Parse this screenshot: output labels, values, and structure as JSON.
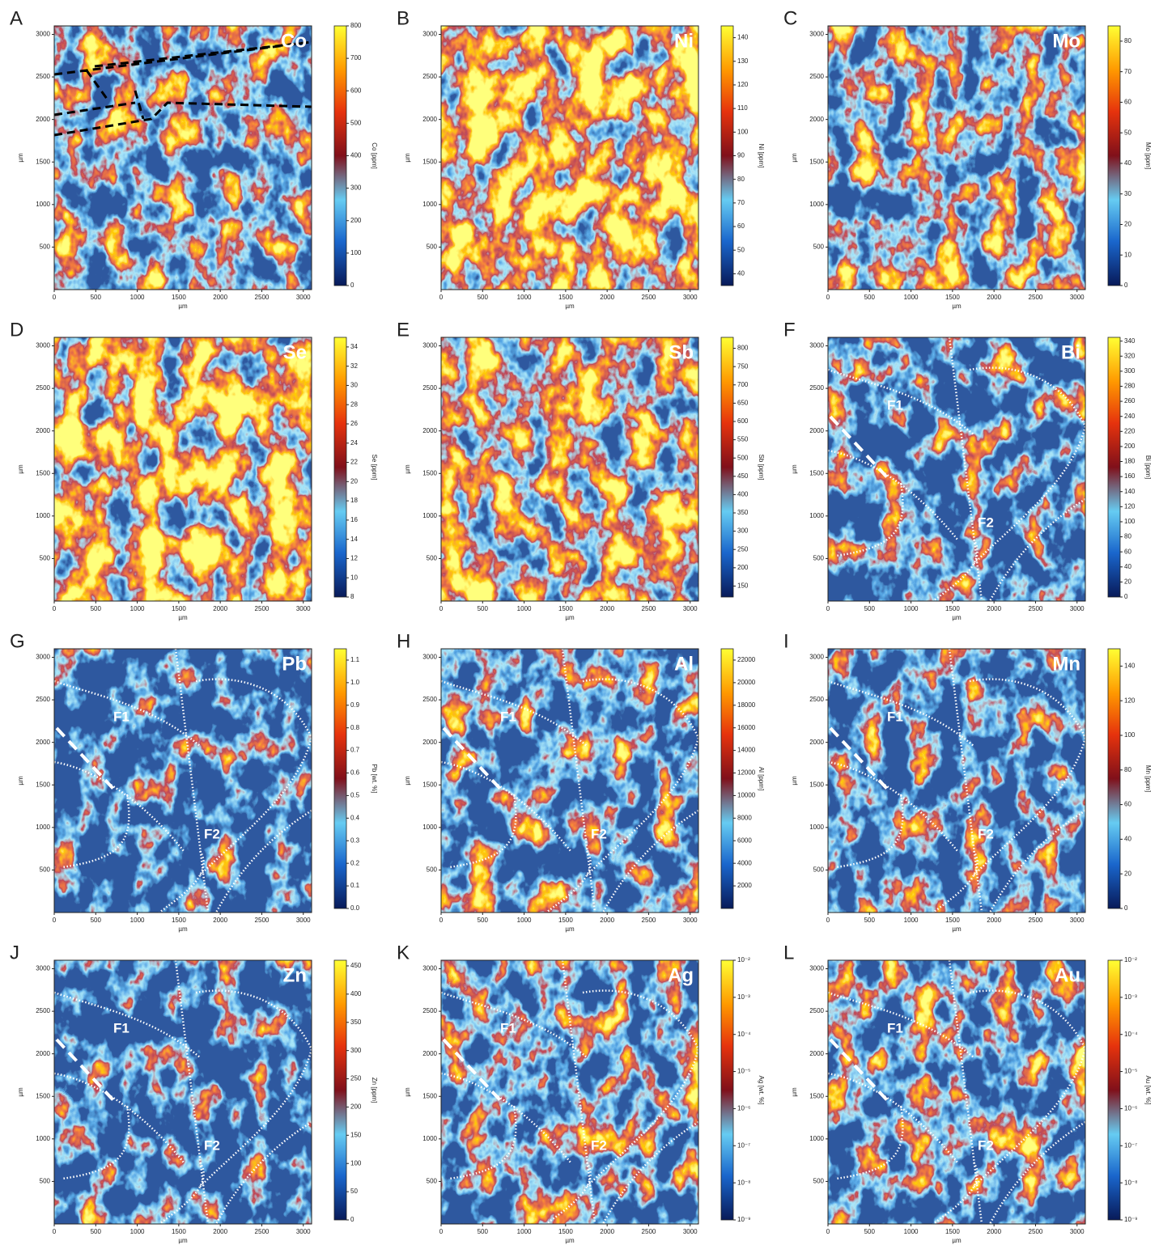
{
  "chart_data": [
    {
      "type": "heatmap",
      "panel_label": "A",
      "title": "Co",
      "xlabel": "µm",
      "ylabel": "µm",
      "xlim": [
        0,
        3100
      ],
      "ylim": [
        0,
        3100
      ],
      "xticks": [
        0,
        500,
        1000,
        1500,
        2000,
        2500,
        3000
      ],
      "yticks": [
        500,
        1000,
        1500,
        2000,
        2500,
        3000
      ],
      "colorbar": {
        "label": "Co [ppm]",
        "lim": [
          0,
          800
        ],
        "ticks": [
          0,
          100,
          200,
          300,
          400,
          500,
          600,
          700,
          800
        ],
        "log": false
      }
    },
    {
      "type": "heatmap",
      "panel_label": "B",
      "title": "Ni",
      "xlabel": "µm",
      "ylabel": "µm",
      "xlim": [
        0,
        3100
      ],
      "ylim": [
        0,
        3100
      ],
      "xticks": [
        0,
        500,
        1000,
        1500,
        2000,
        2500,
        3000
      ],
      "yticks": [
        500,
        1000,
        1500,
        2000,
        2500,
        3000
      ],
      "colorbar": {
        "label": "Ni [ppm]",
        "lim": [
          35,
          145
        ],
        "ticks": [
          40,
          50,
          60,
          70,
          80,
          90,
          100,
          110,
          120,
          130,
          140
        ],
        "log": false
      }
    },
    {
      "type": "heatmap",
      "panel_label": "C",
      "title": "Mo",
      "xlabel": "µm",
      "ylabel": "µm",
      "xlim": [
        0,
        3100
      ],
      "ylim": [
        0,
        3100
      ],
      "xticks": [
        0,
        500,
        1000,
        1500,
        2000,
        2500,
        3000
      ],
      "yticks": [
        500,
        1000,
        1500,
        2000,
        2500,
        3000
      ],
      "colorbar": {
        "label": "Mo [ppm]",
        "lim": [
          0,
          85
        ],
        "ticks": [
          0,
          10,
          20,
          30,
          40,
          50,
          60,
          70,
          80
        ],
        "log": false
      }
    },
    {
      "type": "heatmap",
      "panel_label": "D",
      "title": "Se",
      "xlabel": "µm",
      "ylabel": "µm",
      "xlim": [
        0,
        3100
      ],
      "ylim": [
        0,
        3100
      ],
      "xticks": [
        0,
        500,
        1000,
        1500,
        2000,
        2500,
        3000
      ],
      "yticks": [
        500,
        1000,
        1500,
        2000,
        2500,
        3000
      ],
      "colorbar": {
        "label": "Se [ppm]",
        "lim": [
          8,
          35
        ],
        "ticks": [
          8,
          10,
          12,
          14,
          16,
          18,
          20,
          22,
          24,
          26,
          28,
          30,
          32,
          34
        ],
        "log": false
      }
    },
    {
      "type": "heatmap",
      "panel_label": "E",
      "title": "Sb",
      "xlabel": "µm",
      "ylabel": "µm",
      "xlim": [
        0,
        3100
      ],
      "ylim": [
        0,
        3100
      ],
      "xticks": [
        0,
        500,
        1000,
        1500,
        2000,
        2500,
        3000
      ],
      "yticks": [
        500,
        1000,
        1500,
        2000,
        2500,
        3000
      ],
      "colorbar": {
        "label": "Sb [ppm]",
        "lim": [
          120,
          830
        ],
        "ticks": [
          150,
          200,
          250,
          300,
          350,
          400,
          450,
          500,
          550,
          600,
          650,
          700,
          750,
          800
        ],
        "log": false
      }
    },
    {
      "type": "heatmap",
      "panel_label": "F",
      "title": "Bi",
      "xlabel": "µm",
      "ylabel": "µm",
      "xlim": [
        0,
        3100
      ],
      "ylim": [
        0,
        3100
      ],
      "xticks": [
        0,
        500,
        1000,
        1500,
        2000,
        2500,
        3000
      ],
      "yticks": [
        500,
        1000,
        1500,
        2000,
        2500,
        3000
      ],
      "annotations": [
        "F1",
        "F2"
      ],
      "colorbar": {
        "label": "Bi [ppm]",
        "lim": [
          0,
          345
        ],
        "ticks": [
          0,
          20,
          40,
          60,
          80,
          100,
          120,
          140,
          160,
          180,
          200,
          220,
          240,
          260,
          280,
          300,
          320,
          340
        ],
        "log": false
      }
    },
    {
      "type": "heatmap",
      "panel_label": "G",
      "title": "Pb",
      "xlabel": "µm",
      "ylabel": "µm",
      "xlim": [
        0,
        3100
      ],
      "ylim": [
        0,
        3100
      ],
      "xticks": [
        0,
        500,
        1000,
        1500,
        2000,
        2500,
        3000
      ],
      "yticks": [
        500,
        1000,
        1500,
        2000,
        2500,
        3000
      ],
      "annotations": [
        "F1",
        "F2"
      ],
      "colorbar": {
        "label": "Pb [wt. %]",
        "lim": [
          0,
          1.15
        ],
        "ticks": [
          {
            "value": 0,
            "label": "0.0"
          },
          0.1,
          0.2,
          0.3,
          0.4,
          0.5,
          0.6,
          0.7,
          0.8,
          0.9,
          {
            "value": 1,
            "label": "1.0"
          },
          1.1
        ],
        "log": false
      }
    },
    {
      "type": "heatmap",
      "panel_label": "H",
      "title": "Al",
      "xlabel": "µm",
      "ylabel": "µm",
      "xlim": [
        0,
        3100
      ],
      "ylim": [
        0,
        3100
      ],
      "xticks": [
        0,
        500,
        1000,
        1500,
        2000,
        2500,
        3000
      ],
      "yticks": [
        500,
        1000,
        1500,
        2000,
        2500,
        3000
      ],
      "annotations": [
        "F1",
        "F2"
      ],
      "colorbar": {
        "label": "Al [ppm]",
        "lim": [
          0,
          23000
        ],
        "ticks": [
          2000,
          4000,
          6000,
          8000,
          10000,
          12000,
          14000,
          16000,
          18000,
          20000,
          22000
        ],
        "log": false
      }
    },
    {
      "type": "heatmap",
      "panel_label": "I",
      "title": "Mn",
      "xlabel": "µm",
      "ylabel": "µm",
      "xlim": [
        0,
        3100
      ],
      "ylim": [
        0,
        3100
      ],
      "xticks": [
        0,
        500,
        1000,
        1500,
        2000,
        2500,
        3000
      ],
      "yticks": [
        500,
        1000,
        1500,
        2000,
        2500,
        3000
      ],
      "annotations": [
        "F1",
        "F2"
      ],
      "colorbar": {
        "label": "Mn [ppm]",
        "lim": [
          0,
          150
        ],
        "ticks": [
          0,
          20,
          40,
          60,
          80,
          100,
          120,
          140
        ],
        "log": false
      }
    },
    {
      "type": "heatmap",
      "panel_label": "J",
      "title": "Zn",
      "xlabel": "µm",
      "ylabel": "µm",
      "xlim": [
        0,
        3100
      ],
      "ylim": [
        0,
        3100
      ],
      "xticks": [
        0,
        500,
        1000,
        1500,
        2000,
        2500,
        3000
      ],
      "yticks": [
        500,
        1000,
        1500,
        2000,
        2500,
        3000
      ],
      "annotations": [
        "F1",
        "F2"
      ],
      "colorbar": {
        "label": "Zn [ppm]",
        "lim": [
          0,
          460
        ],
        "ticks": [
          0,
          50,
          100,
          150,
          200,
          250,
          300,
          350,
          400,
          450
        ],
        "log": false
      }
    },
    {
      "type": "heatmap",
      "panel_label": "K",
      "title": "Ag",
      "xlabel": "µm",
      "ylabel": "µm",
      "xlim": [
        0,
        3100
      ],
      "ylim": [
        0,
        3100
      ],
      "xticks": [
        0,
        500,
        1000,
        1500,
        2000,
        2500,
        3000
      ],
      "yticks": [
        500,
        1000,
        1500,
        2000,
        2500,
        3000
      ],
      "annotations": [
        "F1",
        "F2"
      ],
      "colorbar": {
        "label": "Ag [wt. %]",
        "lim": [
          1e-09,
          0.01
        ],
        "ticks": [
          {
            "value": 1e-09,
            "label": "10⁻⁹"
          },
          {
            "value": 1e-08,
            "label": "10⁻⁸"
          },
          {
            "value": 1e-07,
            "label": "10⁻⁷"
          },
          {
            "value": 1e-06,
            "label": "10⁻⁶"
          },
          {
            "value": 1e-05,
            "label": "10⁻⁵"
          },
          {
            "value": 0.0001,
            "label": "10⁻⁴"
          },
          {
            "value": 0.001,
            "label": "10⁻³"
          },
          {
            "value": 0.01,
            "label": "10⁻²"
          }
        ],
        "log": true
      }
    },
    {
      "type": "heatmap",
      "panel_label": "L",
      "title": "Au",
      "xlabel": "µm",
      "ylabel": "µm",
      "xlim": [
        0,
        3100
      ],
      "ylim": [
        0,
        3100
      ],
      "xticks": [
        0,
        500,
        1000,
        1500,
        2000,
        2500,
        3000
      ],
      "yticks": [
        500,
        1000,
        1500,
        2000,
        2500,
        3000
      ],
      "annotations": [
        "F1",
        "F2"
      ],
      "colorbar": {
        "label": "Au [wt. %]",
        "lim": [
          1e-09,
          0.01
        ],
        "ticks": [
          {
            "value": 1e-09,
            "label": "10⁻⁹"
          },
          {
            "value": 1e-08,
            "label": "10⁻⁸"
          },
          {
            "value": 1e-07,
            "label": "10⁻⁷"
          },
          {
            "value": 1e-06,
            "label": "10⁻⁶"
          },
          {
            "value": 1e-05,
            "label": "10⁻⁵"
          },
          {
            "value": 0.0001,
            "label": "10⁻⁴"
          },
          {
            "value": 0.001,
            "label": "10⁻³"
          },
          {
            "value": 0.01,
            "label": "10⁻²"
          }
        ],
        "log": true
      }
    }
  ]
}
